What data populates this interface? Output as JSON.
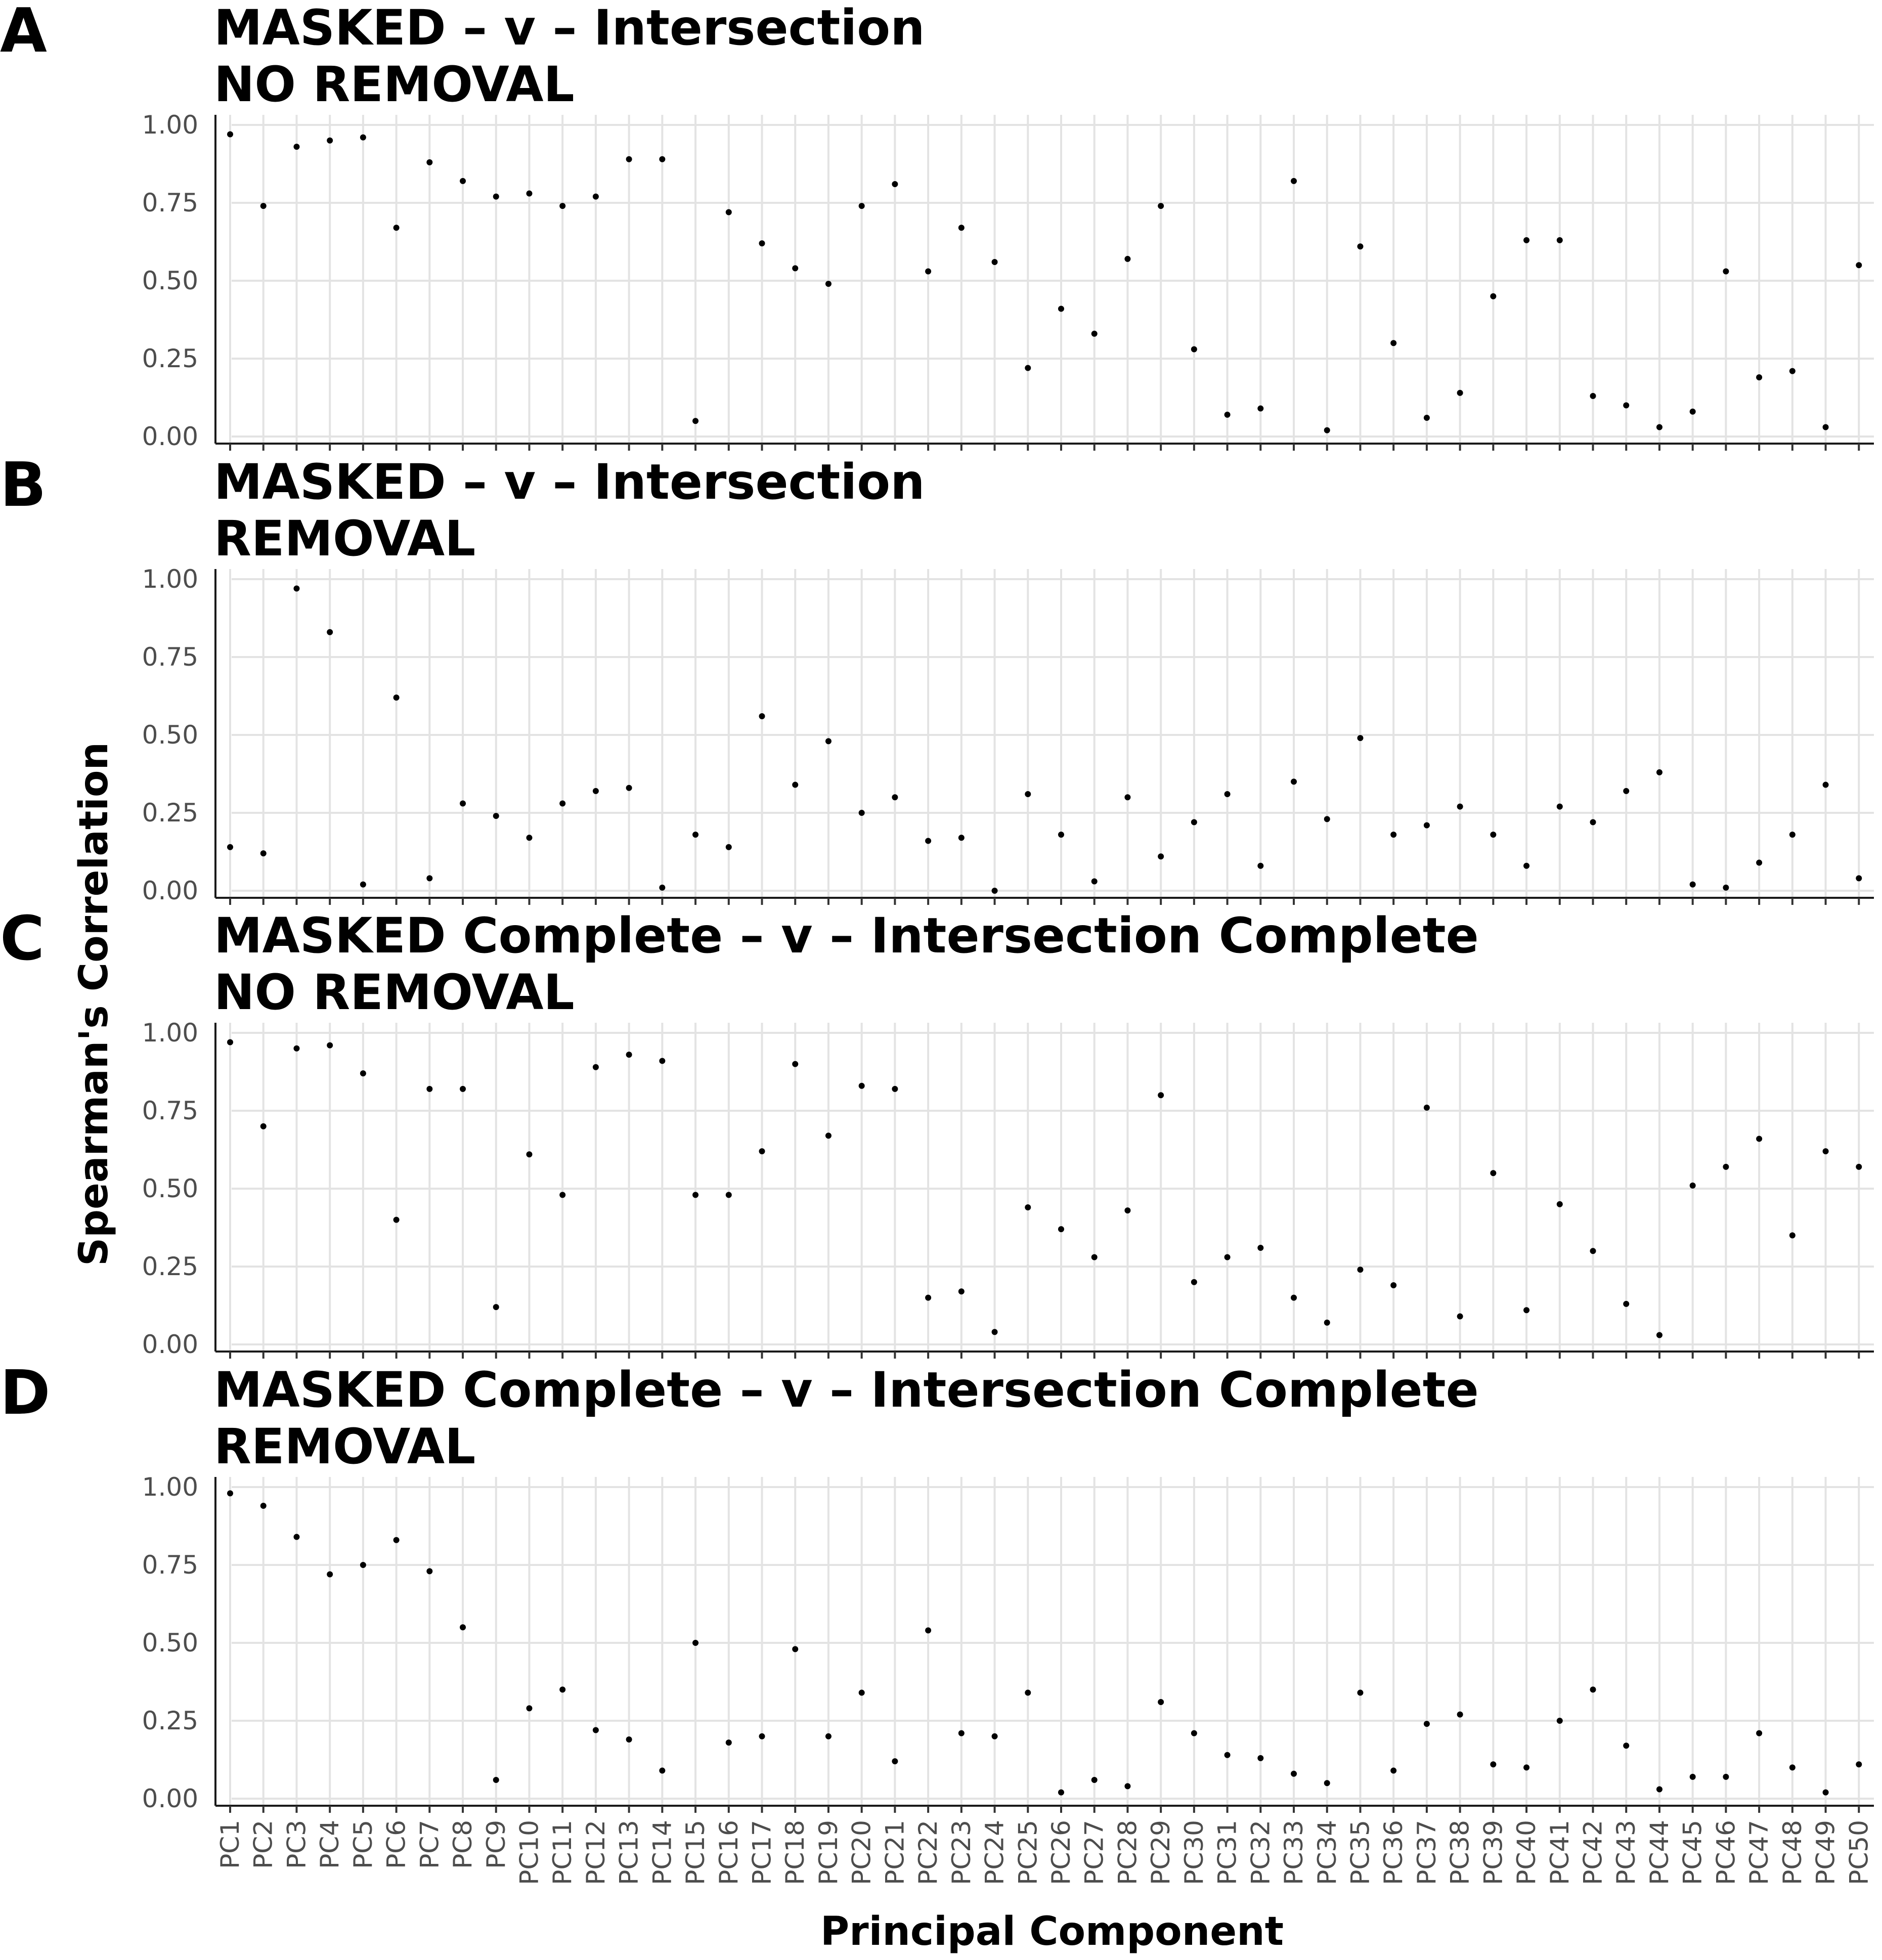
{
  "chart_data": {
    "type": "scatter",
    "ylabel": "Spearman's Correlation",
    "xlabel": "Principal Component",
    "ylim": [
      0,
      1
    ],
    "yticks": [
      "0.00",
      "0.25",
      "0.50",
      "0.75",
      "1.00"
    ],
    "ytick_values": [
      0,
      0.25,
      0.5,
      0.75,
      1.0
    ],
    "grid": true,
    "point_color": "#000000",
    "categories": [
      "PC1",
      "PC2",
      "PC3",
      "PC4",
      "PC5",
      "PC6",
      "PC7",
      "PC8",
      "PC9",
      "PC10",
      "PC11",
      "PC12",
      "PC13",
      "PC14",
      "PC15",
      "PC16",
      "PC17",
      "PC18",
      "PC19",
      "PC20",
      "PC21",
      "PC22",
      "PC23",
      "PC24",
      "PC25",
      "PC26",
      "PC27",
      "PC28",
      "PC29",
      "PC30",
      "PC31",
      "PC32",
      "PC33",
      "PC34",
      "PC35",
      "PC36",
      "PC37",
      "PC38",
      "PC39",
      "PC40",
      "PC41",
      "PC42",
      "PC43",
      "PC44",
      "PC45",
      "PC46",
      "PC47",
      "PC48",
      "PC49",
      "PC50"
    ],
    "panels": [
      {
        "letter": "A",
        "title_line1": "MASKED – v – Intersection",
        "title_line2": "NO REMOVAL",
        "values": [
          0.97,
          0.74,
          0.93,
          0.95,
          0.96,
          0.67,
          0.88,
          0.82,
          0.77,
          0.78,
          0.74,
          0.77,
          0.89,
          0.89,
          0.05,
          0.72,
          0.62,
          0.54,
          0.49,
          0.74,
          0.81,
          0.53,
          0.67,
          0.56,
          0.22,
          0.41,
          0.33,
          0.57,
          0.74,
          0.28,
          0.07,
          0.09,
          0.82,
          0.02,
          0.61,
          0.3,
          0.06,
          0.14,
          0.45,
          0.63,
          0.63,
          0.13,
          0.1,
          0.03,
          0.08,
          0.53,
          0.19,
          0.21,
          0.03,
          0.55
        ]
      },
      {
        "letter": "B",
        "title_line1": "MASKED – v – Intersection",
        "title_line2": "REMOVAL",
        "values": [
          0.14,
          0.12,
          0.97,
          0.83,
          0.02,
          0.62,
          0.04,
          0.28,
          0.24,
          0.17,
          0.28,
          0.32,
          0.33,
          0.01,
          0.18,
          0.14,
          0.56,
          0.34,
          0.48,
          0.25,
          0.3,
          0.16,
          0.17,
          0.0,
          0.31,
          0.18,
          0.03,
          0.3,
          0.11,
          0.22,
          0.31,
          0.08,
          0.35,
          0.23,
          0.49,
          0.18,
          0.21,
          0.27,
          0.18,
          0.08,
          0.27,
          0.22,
          0.32,
          0.38,
          0.02,
          0.01,
          0.09,
          0.18,
          0.34,
          0.04
        ]
      },
      {
        "letter": "C",
        "title_line1": "MASKED Complete – v – Intersection Complete",
        "title_line2": "NO REMOVAL",
        "values": [
          0.97,
          0.7,
          0.95,
          0.96,
          0.87,
          0.4,
          0.82,
          0.82,
          0.12,
          0.61,
          0.48,
          0.89,
          0.93,
          0.91,
          0.48,
          0.48,
          0.62,
          0.9,
          0.67,
          0.83,
          0.82,
          0.15,
          0.17,
          0.04,
          0.44,
          0.37,
          0.28,
          0.43,
          0.8,
          0.2,
          0.28,
          0.31,
          0.15,
          0.07,
          0.24,
          0.19,
          0.76,
          0.09,
          0.55,
          0.11,
          0.45,
          0.3,
          0.13,
          0.03,
          0.51,
          0.57,
          0.66,
          0.35,
          0.62,
          0.57
        ]
      },
      {
        "letter": "D",
        "title_line1": "MASKED Complete – v – Intersection Complete",
        "title_line2": "REMOVAL",
        "values": [
          0.98,
          0.94,
          0.84,
          0.72,
          0.75,
          0.83,
          0.73,
          0.55,
          0.06,
          0.29,
          0.35,
          0.22,
          0.19,
          0.09,
          0.5,
          0.18,
          0.2,
          0.48,
          0.2,
          0.34,
          0.12,
          0.54,
          0.21,
          0.2,
          0.34,
          0.02,
          0.06,
          0.04,
          0.31,
          0.21,
          0.14,
          0.13,
          0.08,
          0.05,
          0.34,
          0.09,
          0.24,
          0.27,
          0.11,
          0.1,
          0.25,
          0.35,
          0.17,
          0.03,
          0.07,
          0.07,
          0.21,
          0.1,
          0.02,
          0.11
        ]
      }
    ]
  }
}
